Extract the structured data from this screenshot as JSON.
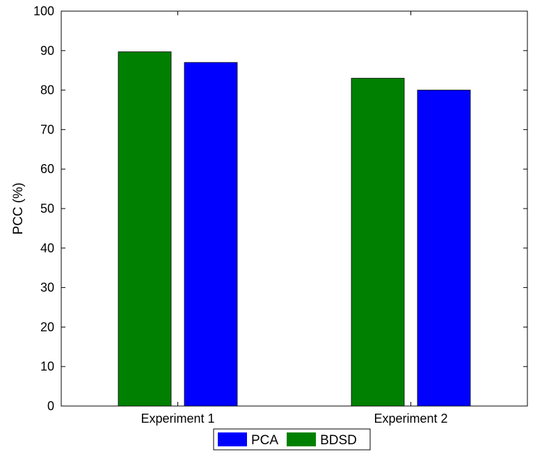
{
  "chart_data": {
    "type": "bar",
    "categories": [
      "Experiment 1",
      "Experiment 2"
    ],
    "series": [
      {
        "name": "BDSD",
        "color": "#008000",
        "values": [
          89.7,
          83.0
        ]
      },
      {
        "name": "PCA",
        "color": "#0000ff",
        "values": [
          87.0,
          80.0
        ]
      }
    ],
    "legend_order": [
      "PCA",
      "BDSD"
    ],
    "title": "",
    "xlabel": "",
    "ylabel": "PCC (%)",
    "ylim": [
      0,
      100
    ],
    "yticks": [
      0,
      10,
      20,
      30,
      40,
      50,
      60,
      70,
      80,
      90,
      100
    ],
    "grid": false,
    "legend_position": "bottom-center"
  }
}
